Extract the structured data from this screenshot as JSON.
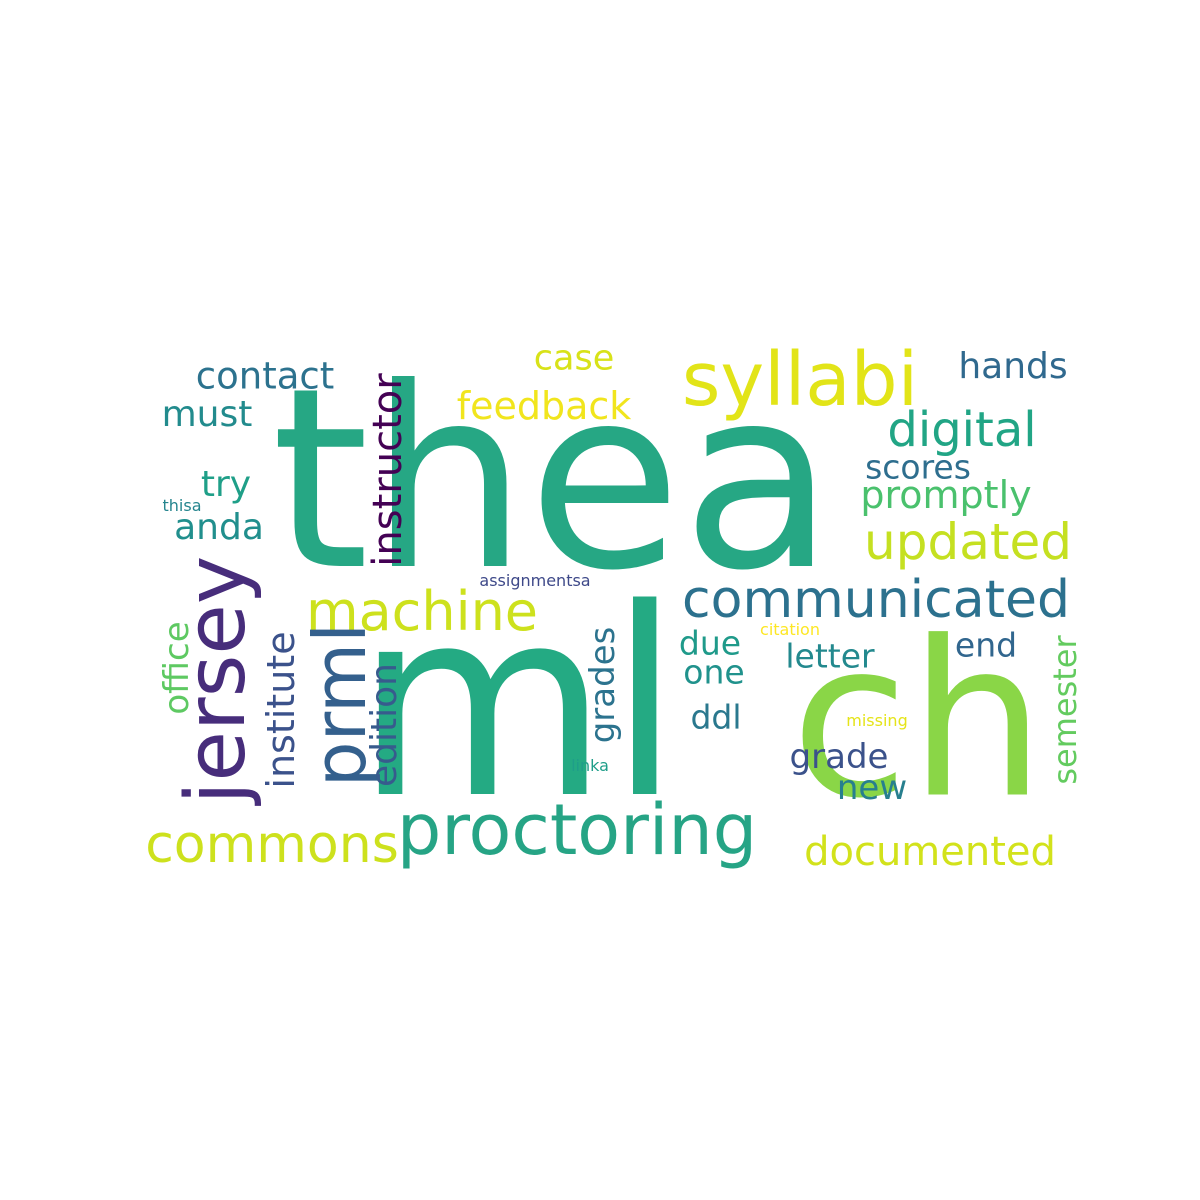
{
  "words": [
    {
      "text": "thea",
      "color": "#26a784"
    },
    {
      "text": "ml",
      "color": "#24aa83"
    },
    {
      "text": "ch",
      "color": "#8ad647"
    },
    {
      "text": "syllabi",
      "color": "#e2e418"
    },
    {
      "text": "proctoring",
      "color": "#26a485"
    },
    {
      "text": "communicated",
      "color": "#2c718e"
    },
    {
      "text": "machine",
      "color": "#cde11d"
    },
    {
      "text": "jersey",
      "color": "#472d7b"
    },
    {
      "text": "prml",
      "color": "#34608d"
    },
    {
      "text": "commons",
      "color": "#cde11d"
    },
    {
      "text": "updated",
      "color": "#c5e021"
    },
    {
      "text": "digital",
      "color": "#21a585"
    },
    {
      "text": "documented",
      "color": "#d2e21b"
    },
    {
      "text": "instructor",
      "color": "#440154"
    },
    {
      "text": "feedback",
      "color": "#f1e51d"
    },
    {
      "text": "contact",
      "color": "#2c728e"
    },
    {
      "text": "promptly",
      "color": "#4ac16d"
    },
    {
      "text": "hands",
      "color": "#30698e"
    },
    {
      "text": "scores",
      "color": "#2e6e8e"
    },
    {
      "text": "case",
      "color": "#d8e219"
    },
    {
      "text": "must",
      "color": "#228b8d"
    },
    {
      "text": "try",
      "color": "#1f9f88"
    },
    {
      "text": "anda",
      "color": "#218f8d"
    },
    {
      "text": "institute",
      "color": "#3b528b"
    },
    {
      "text": "edition",
      "color": "#375b8d"
    },
    {
      "text": "office",
      "color": "#5ec962"
    },
    {
      "text": "grades",
      "color": "#2c738e"
    },
    {
      "text": "due",
      "color": "#1f9a8a"
    },
    {
      "text": "letter",
      "color": "#23898e"
    },
    {
      "text": "one",
      "color": "#20928c"
    },
    {
      "text": "end",
      "color": "#31668e"
    },
    {
      "text": "ddl",
      "color": "#2a788e"
    },
    {
      "text": "grade",
      "color": "#3b528b"
    },
    {
      "text": "new",
      "color": "#277f8e"
    },
    {
      "text": "semester",
      "color": "#63cb5f"
    },
    {
      "text": "thisa",
      "color": "#25858e"
    },
    {
      "text": "assignmentsa",
      "color": "#3e4989"
    },
    {
      "text": "citation",
      "color": "#fde725"
    },
    {
      "text": "missing",
      "color": "#e5e419"
    },
    {
      "text": "linka",
      "color": "#1f9e89"
    }
  ]
}
